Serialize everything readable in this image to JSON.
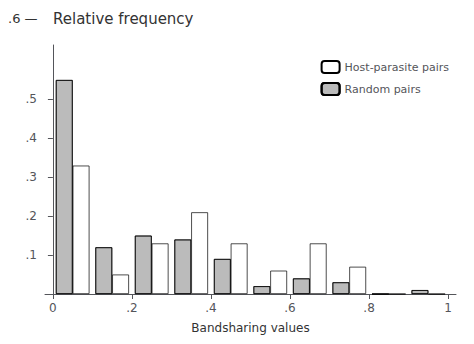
{
  "chart_data": {
    "type": "bar",
    "title": "Relative frequency",
    "annotations": [
      ".6 —"
    ],
    "xlabel": "Bandsharing values",
    "x": [
      0.05,
      0.15,
      0.25,
      0.35,
      0.45,
      0.55,
      0.65,
      0.75,
      0.85,
      0.95
    ],
    "series": [
      {
        "name": "Host-parasite pairs",
        "color": "#ffffff",
        "values": [
          0.33,
          0.05,
          0.13,
          0.21,
          0.13,
          0.06,
          0.13,
          0.07,
          0.0,
          0.0
        ]
      },
      {
        "name": "Random pairs",
        "color": "#bbbbbb",
        "values": [
          0.55,
          0.12,
          0.15,
          0.14,
          0.09,
          0.02,
          0.04,
          0.03,
          0.0,
          0.01
        ]
      }
    ],
    "xlim": [
      -0.02,
      1.02
    ],
    "xticks": [
      {
        "value": 0.0,
        "label": "0"
      },
      {
        "value": 0.2,
        "label": ".2"
      },
      {
        "value": 0.4,
        "label": ".4"
      },
      {
        "value": 0.6,
        "label": ".6"
      },
      {
        "value": 0.8,
        "label": ".8"
      },
      {
        "value": 1.0,
        "label": "1"
      }
    ],
    "ylim": [
      0,
      0.64
    ],
    "yticks": [
      {
        "value": 0,
        "label": null
      },
      {
        "value": 0.1,
        "label": ".1"
      },
      {
        "value": 0.2,
        "label": ".2"
      },
      {
        "value": 0.3,
        "label": ".3"
      },
      {
        "value": 0.4,
        "label": ".4"
      },
      {
        "value": 0.5,
        "label": ".5"
      }
    ],
    "grid": false,
    "legend": "upper right"
  }
}
